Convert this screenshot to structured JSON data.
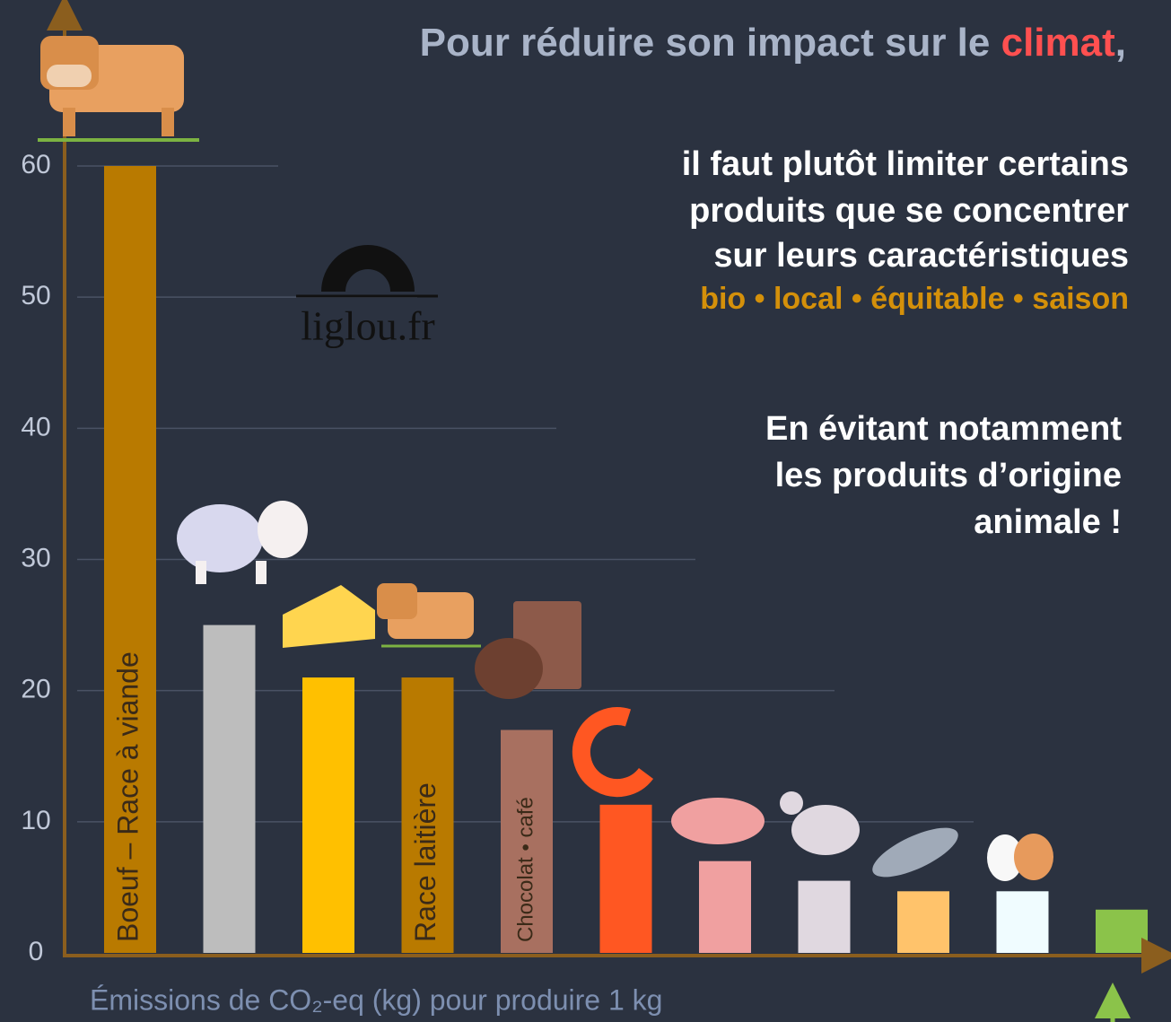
{
  "chart_data": {
    "type": "bar",
    "title": {
      "before": "Pour réduire son impact sur le ",
      "highlight": "climat",
      "after": ","
    },
    "subtitle": [
      "il faut plutôt limiter certains",
      "produits que se concentrer",
      "sur leurs caractéristiques"
    ],
    "tags": "bio • local • équitable • saison",
    "note": [
      "En évitant notamment",
      "les produits d’origine",
      "animale !"
    ],
    "logo": "liglou.fr",
    "x_label": "Émissions de CO₂-eq (kg) pour produire 1 kg",
    "categories": [
      "Boeuf – Race à viande",
      null,
      null,
      "Race laitière",
      "Chocolat • café",
      null,
      null,
      null,
      null,
      null,
      null
    ],
    "values": [
      60,
      25,
      21,
      21,
      17,
      11.3,
      7,
      5.5,
      4.7,
      4.7,
      3.3
    ],
    "colors": [
      "#b97a00",
      "#bdbdbd",
      "#ffc000",
      "#b97a00",
      "#a87060",
      "#ff5722",
      "#f0a0a0",
      "#e0d8e0",
      "#ffc36b",
      "#f0fcff",
      "#8bc34a"
    ],
    "ylim": [
      0,
      60
    ],
    "yticks": [
      0,
      10,
      20,
      30,
      40,
      50,
      60
    ],
    "grid": true
  }
}
